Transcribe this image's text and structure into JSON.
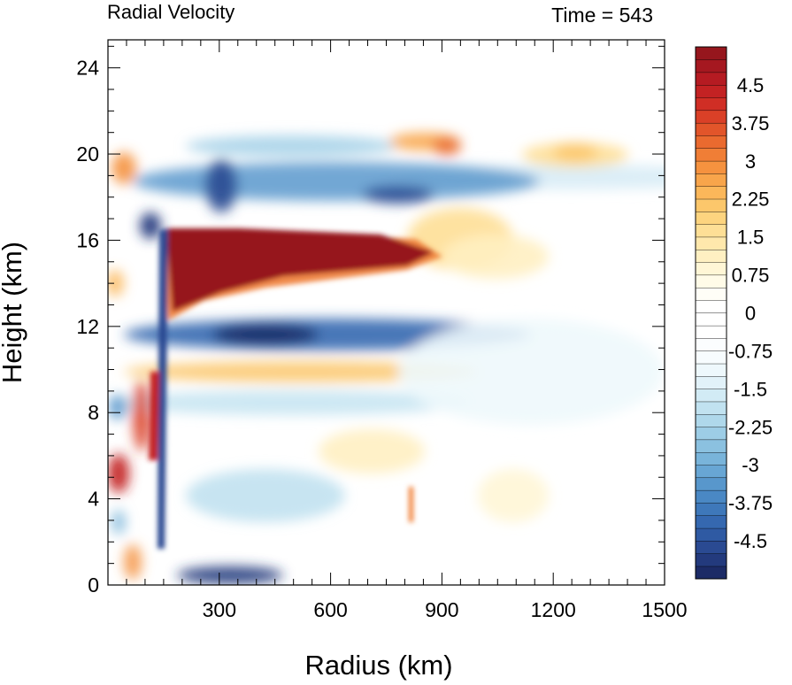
{
  "chart_data": {
    "type": "heatmap",
    "title": "Radial Velocity",
    "subtitle": "Time = 543",
    "xlabel": "Radius (km)",
    "ylabel": "Height (km)",
    "xlim": [
      0,
      1500
    ],
    "ylim": [
      0,
      25.3
    ],
    "x_ticks": [
      "300",
      "600",
      "900",
      "1200",
      "1500"
    ],
    "x_tick_values": [
      300,
      600,
      900,
      1200,
      1500
    ],
    "y_ticks": [
      "0",
      "4",
      "8",
      "12",
      "16",
      "20",
      "24"
    ],
    "y_tick_values": [
      0,
      4,
      8,
      12,
      16,
      20,
      24
    ],
    "colorbar": {
      "levels": [
        -5.25,
        -5,
        -4.75,
        -4.5,
        -4.25,
        -4,
        -3.75,
        -3.5,
        -3.25,
        -3,
        -2.75,
        -2.5,
        -2.25,
        -2,
        -1.75,
        -1.5,
        -1.25,
        -1,
        -0.75,
        -0.5,
        -0.25,
        0,
        0.25,
        0.5,
        0.75,
        1,
        1.25,
        1.5,
        1.75,
        2,
        2.25,
        2.5,
        2.75,
        3,
        3.25,
        3.5,
        3.75,
        4,
        4.25,
        4.5,
        4.75,
        5,
        5.25
      ],
      "labels": [
        "4.5",
        "3.75",
        "3",
        "2.25",
        "1.5",
        "0.75",
        "0",
        "-0.75",
        "-1.5",
        "-2.25",
        "-3",
        "-3.75",
        "-4.5"
      ],
      "label_values": [
        4.5,
        3.75,
        3,
        2.25,
        1.5,
        0.75,
        0,
        -0.75,
        -1.5,
        -2.25,
        -3,
        -3.75,
        -4.5
      ],
      "colors_neg_to_pos": [
        "#1c2b66",
        "#233a7d",
        "#2a4a92",
        "#2f5aa3",
        "#3568b0",
        "#3e78ba",
        "#4a88c4",
        "#5897cc",
        "#68a6d4",
        "#79b4da",
        "#8bc1e0",
        "#9dcde6",
        "#afd8eb",
        "#c1e2f0",
        "#d2ebf5",
        "#e2f2f9",
        "#eef8fc",
        "#f7fcfe",
        "#fbfdfe",
        "#ffffff",
        "#ffffff",
        "#ffffff",
        "#fffef7",
        "#fffbe8",
        "#fff6d6",
        "#fff0c2",
        "#ffe8ac",
        "#fedf96",
        "#fdd47f",
        "#fcc76b",
        "#fbb75a",
        "#f8a54b",
        "#f5923f",
        "#f07e36",
        "#ea6a2f",
        "#e2552a",
        "#da4027",
        "#d02e25",
        "#c32223",
        "#b51b22",
        "#a51820",
        "#96161d"
      ]
    },
    "features": [
      {
        "name": "outflow_max",
        "x": [
          180,
          880
        ],
        "y": [
          13,
          16.4
        ],
        "value": 5.25
      },
      {
        "name": "inflow_below_outflow",
        "x": [
          190,
          700
        ],
        "y": [
          11,
          12.5
        ],
        "value": -4.5
      },
      {
        "name": "inflow_above_outflow",
        "x": [
          150,
          950
        ],
        "y": [
          16.8,
          20.5
        ],
        "value": -3.5
      },
      {
        "name": "outflow_upper_right",
        "x": [
          1180,
          1450
        ],
        "y": [
          19.5,
          21
        ],
        "value": 2.5
      },
      {
        "name": "inner_core_edge",
        "x": [
          160,
          180
        ],
        "y": [
          0,
          16.5
        ],
        "value": -4.5
      },
      {
        "name": "low_level_inflow",
        "x": [
          160,
          350
        ],
        "y": [
          0,
          1.2
        ],
        "value": -5
      }
    ]
  }
}
